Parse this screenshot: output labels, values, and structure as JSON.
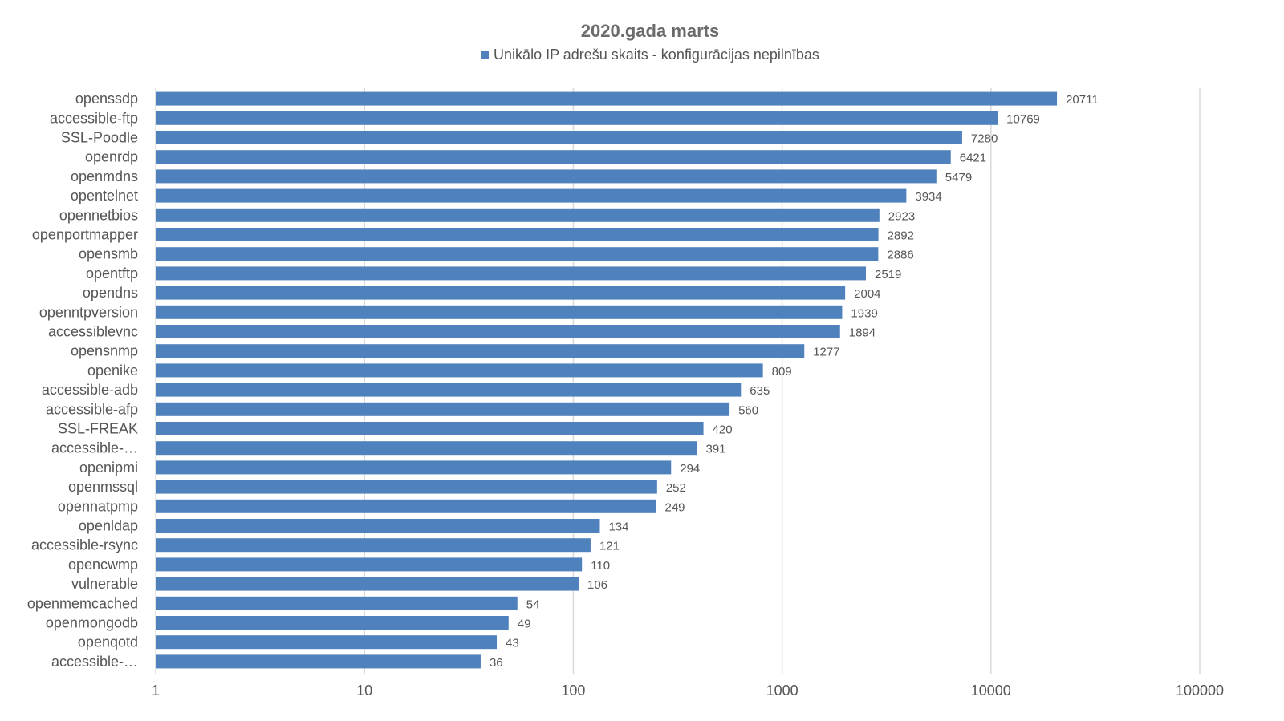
{
  "chart_data": {
    "type": "bar",
    "orientation": "horizontal",
    "title": "2020.gada marts",
    "legend_position": "top",
    "x_scale": "log",
    "xlim": [
      1,
      100000
    ],
    "grid": true,
    "x_ticks": [
      "1",
      "10",
      "100",
      "1000",
      "10000",
      "100000"
    ],
    "series": [
      {
        "name": "Unikālo IP adrešu skaits  -  konfigurācijas nepilnības",
        "color": "#4f81bd"
      }
    ],
    "categories": [
      "openssdp",
      "accessible-ftp",
      "SSL-Poodle",
      "openrdp",
      "openmdns",
      "opentelnet",
      "opennetbios",
      "openportmapper",
      "opensmb",
      "opentftp",
      "opendns",
      "openntpversion",
      "accessiblevnc",
      "opensnmp",
      "openike",
      "accessible-adb",
      "accessible-afp",
      "SSL-FREAK",
      "accessible-…",
      "openipmi",
      "openmssql",
      "opennatpmp",
      "openldap",
      "accessible-rsync",
      "opencwmp",
      "vulnerable",
      "openmemcached",
      "openmongodb",
      "openqotd",
      "accessible-…"
    ],
    "values": [
      20711,
      10769,
      7280,
      6421,
      5479,
      3934,
      2923,
      2892,
      2886,
      2519,
      2004,
      1939,
      1894,
      1277,
      809,
      635,
      560,
      420,
      391,
      294,
      252,
      249,
      134,
      121,
      110,
      106,
      54,
      49,
      43,
      36
    ]
  }
}
